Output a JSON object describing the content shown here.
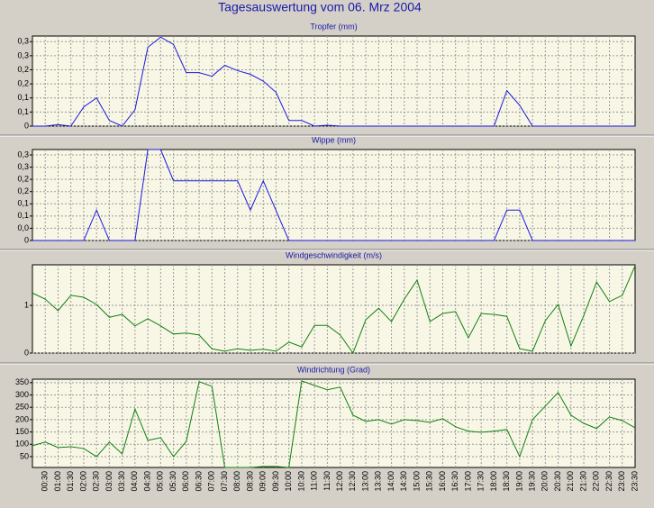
{
  "title": "Tagesauswertung vom 06. Mrz 2004",
  "chart_data": [
    {
      "type": "line",
      "title": "Tropfer (mm)",
      "color": "#1a1ae0",
      "grid": true,
      "ylim": [
        0,
        0.32
      ],
      "yticks": [
        0,
        {
          "value": 0.05,
          "label": "0,1"
        },
        {
          "value": 0.1,
          "label": "0,1"
        },
        {
          "value": 0.15,
          "label": "0,2"
        },
        {
          "value": 0.2,
          "label": "0,2"
        },
        {
          "value": 0.25,
          "label": "0,3"
        },
        {
          "value": 0.3,
          "label": "0,3"
        }
      ],
      "values": [
        0,
        0,
        0.005,
        0,
        0.068,
        0.1,
        0.02,
        0,
        0.058,
        0.28,
        0.316,
        0.29,
        0.19,
        0.19,
        0.177,
        0.216,
        0.197,
        0.184,
        0.16,
        0.12,
        0.02,
        0.02,
        0,
        0.003,
        0,
        0,
        0,
        0,
        0,
        0,
        0,
        0,
        0,
        0,
        0,
        0,
        0,
        0.126,
        0.074,
        0,
        0,
        0,
        0,
        0,
        0,
        0,
        0,
        0
      ]
    },
    {
      "type": "line",
      "title": "Wippe (mm)",
      "color": "#1a1ae0",
      "grid": true,
      "ylim": [
        0,
        0.32
      ],
      "yticks": [
        0,
        {
          "value": 0.043,
          "label": "0,0"
        },
        {
          "value": 0.086,
          "label": "0,1"
        },
        {
          "value": 0.129,
          "label": "0,1"
        },
        {
          "value": 0.172,
          "label": "0,2"
        },
        {
          "value": 0.215,
          "label": "0,2"
        },
        {
          "value": 0.258,
          "label": "0,3"
        },
        {
          "value": 0.301,
          "label": "0,3"
        }
      ],
      "values": [
        0,
        0,
        0,
        0,
        0,
        0.107,
        0,
        0,
        0,
        0.32,
        0.32,
        0.21,
        0.21,
        0.21,
        0.21,
        0.21,
        0.21,
        0.107,
        0.21,
        0.105,
        0,
        0,
        0,
        0,
        0,
        0,
        0,
        0,
        0,
        0,
        0,
        0,
        0,
        0,
        0,
        0,
        0,
        0.107,
        0.107,
        0,
        0,
        0,
        0,
        0,
        0,
        0,
        0,
        0
      ]
    },
    {
      "type": "line",
      "title": "Windgeschwindigkeit (m/s)",
      "color": "#108010",
      "grid": true,
      "ylim": [
        0,
        1.85
      ],
      "yticks": [
        0,
        1
      ],
      "values": [
        1.26,
        1.13,
        0.89,
        1.21,
        1.17,
        1.02,
        0.75,
        0.81,
        0.57,
        0.72,
        0.57,
        0.4,
        0.42,
        0.38,
        0.09,
        0.04,
        0.09,
        0.06,
        0.08,
        0.04,
        0.23,
        0.13,
        0.58,
        0.58,
        0.38,
        0,
        0.7,
        0.94,
        0.66,
        1.13,
        1.53,
        0.66,
        0.83,
        0.87,
        0.32,
        0.83,
        0.81,
        0.77,
        0.09,
        0.04,
        0.68,
        1.02,
        0.15,
        0.79,
        1.49,
        1.08,
        1.21,
        1.83
      ]
    },
    {
      "type": "line",
      "title": "Windrichtung (Grad)",
      "color": "#108010",
      "grid": true,
      "ylim": [
        6,
        364
      ],
      "yticks": [
        50,
        100,
        150,
        200,
        250,
        300,
        350
      ],
      "categories": [
        null,
        "00:30",
        "01:00",
        "01:30",
        "02:00",
        "02:30",
        "03:00",
        "03:30",
        "04:00",
        "04:30",
        "05:00",
        "05:30",
        "06:00",
        "06:30",
        "07:00",
        "07:30",
        "08:00",
        "08:30",
        "09:00",
        "09:30",
        "10:00",
        "10:30",
        "11:00",
        "11:30",
        "12:00",
        "12:30",
        "13:00",
        "13:30",
        "14:00",
        "14:30",
        "15:00",
        "15:30",
        "16:00",
        "16:30",
        "17:00",
        "17:30",
        "18:00",
        "18:30",
        "19:00",
        "19:30",
        "20:00",
        "20:30",
        "21:00",
        "21:30",
        "22:00",
        "22:30",
        "23:00",
        "23:30"
      ],
      "values": [
        94,
        109,
        87,
        90,
        83,
        50,
        109,
        61,
        243,
        116,
        127,
        50,
        112,
        354,
        335,
        6,
        6,
        6,
        10,
        10,
        6,
        357,
        339,
        321,
        332,
        218,
        193,
        200,
        182,
        200,
        196,
        189,
        204,
        171,
        153,
        149,
        153,
        160,
        50,
        200,
        255,
        310,
        218,
        185,
        164,
        211,
        196,
        167
      ]
    }
  ]
}
